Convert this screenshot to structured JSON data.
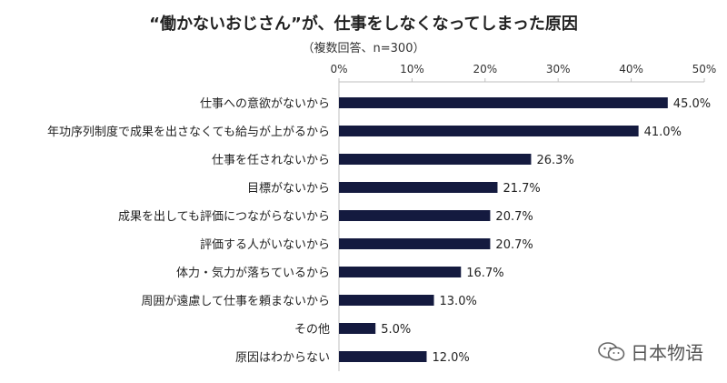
{
  "header": {
    "title": "“働かないおじさん”が、仕事をしなくなってしまった原因",
    "subtitle": "（複数回答、n=300）"
  },
  "watermark": {
    "text": "日本物语",
    "icon": "wechat-icon"
  },
  "colors": {
    "bar": "#141a3f",
    "axis": "#bfbfbf",
    "text": "#222222"
  },
  "chart_data": {
    "type": "bar",
    "orientation": "horizontal",
    "title": "“働かないおじさん”が、仕事をしなくなってしまった原因",
    "subtitle": "（複数回答、n=300）",
    "categories": [
      "仕事への意欲がないから",
      "年功序列制度で成果を出さなくても給与が上がるから",
      "仕事を任されないから",
      "目標がないから",
      "成果を出しても評価につながらないから",
      "評価する人がいないから",
      "体力・気力が落ちているから",
      "周囲が遠慮して仕事を頼まないから",
      "その他",
      "原因はわからない"
    ],
    "values": [
      45.0,
      41.0,
      26.3,
      21.7,
      20.7,
      20.7,
      16.7,
      13.0,
      5.0,
      12.0
    ],
    "value_labels": [
      "45.0%",
      "41.0%",
      "26.3%",
      "21.7%",
      "20.7%",
      "20.7%",
      "16.7%",
      "13.0%",
      "5.0%",
      "12.0%"
    ],
    "x_ticks": [
      0,
      10,
      20,
      30,
      40,
      50
    ],
    "x_tick_labels": [
      "0%",
      "10%",
      "20%",
      "30%",
      "40%",
      "50%"
    ],
    "xlim": [
      0,
      50
    ],
    "axis_position": "top",
    "grid": false,
    "legend": "none"
  }
}
